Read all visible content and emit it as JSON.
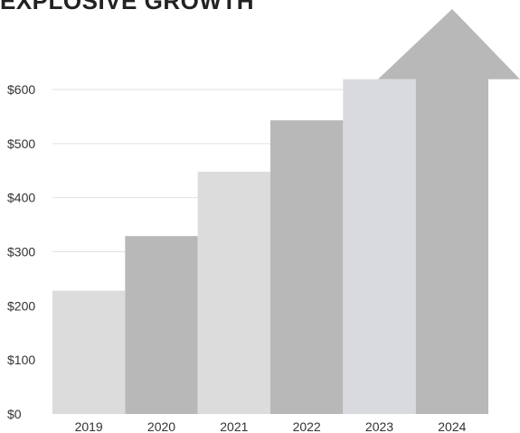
{
  "chart_data": {
    "type": "bar",
    "title": "EXPLOSIVE GROWTH",
    "categories": [
      "2019",
      "2020",
      "2021",
      "2022",
      "2023",
      "2024"
    ],
    "values": [
      228,
      329,
      448,
      543,
      619,
      619
    ],
    "ylim": [
      0,
      600
    ],
    "yticks": [
      0,
      100,
      200,
      300,
      400,
      500,
      600
    ],
    "ytick_labels": [
      "$0",
      "$100",
      "$200",
      "$300",
      "$400",
      "$500",
      "$600"
    ],
    "grid": true,
    "bar_colors": [
      "#dcdcdc",
      "#b8b8b8",
      "#dcdcdc",
      "#b8b8b8",
      "#d9dadd",
      "#b8b8b8"
    ],
    "final_bar_arrow": true,
    "grid_color": "#e2e2e2"
  }
}
